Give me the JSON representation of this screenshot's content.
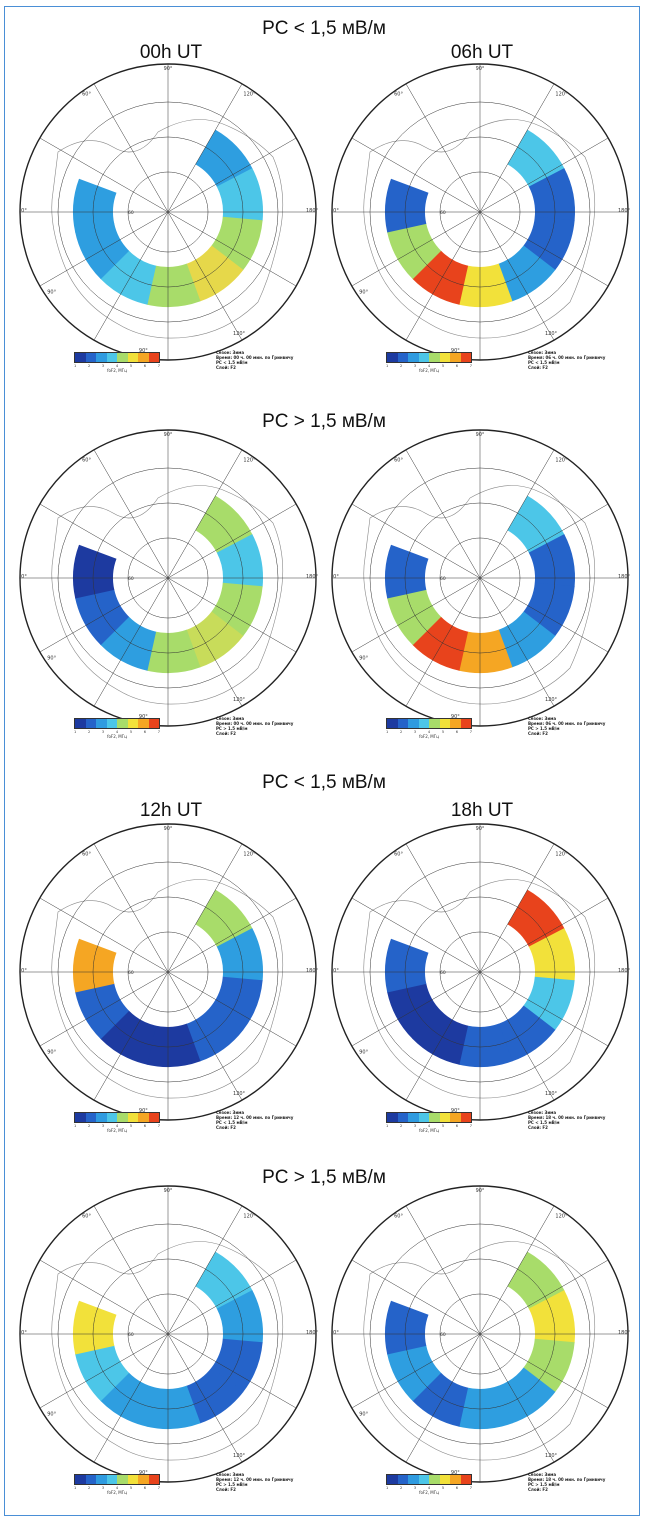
{
  "sections": [
    {
      "title": "PC < 1,5 мВ/м",
      "cols": [
        "00h UT",
        "06h UT"
      ]
    },
    {
      "title": "PC > 1,5 мВ/м",
      "cols": [
        "",
        ""
      ]
    },
    {
      "title": "PC < 1,5 мВ/м",
      "cols": [
        "12h UT",
        "18h UT"
      ]
    },
    {
      "title": "PC > 1,5 мВ/м",
      "cols": [
        "",
        ""
      ]
    }
  ],
  "axis_labels": {
    "top": "90°",
    "upper_left": "60°",
    "upper_right": "120°",
    "left": "0°",
    "right": "180°",
    "lower_left": "90°",
    "bottom": "90°",
    "lower_right": "120°",
    "inner": "60"
  },
  "colorbar": {
    "label": "foF2, МГц",
    "ticks": [
      "1",
      "2",
      "3",
      "4",
      "5",
      "6",
      "7"
    ],
    "colors": [
      "#1d3aa0",
      "#2563c9",
      "#2f9be0",
      "#4cc6e8",
      "#a8dc6a",
      "#f2e13a",
      "#f5a623",
      "#e8431c"
    ]
  },
  "maps": [
    {
      "caption": [
        "Сезон: Зима",
        "Время: 00 ч. 00 мин. по Гринвичу",
        "PC < 1.5 мВ/м",
        "Слой: F2"
      ],
      "bands": [
        "#2e9ee0",
        "#4cc6e8",
        "#a8dc6a",
        "#e6d84a",
        "#a8dc6a",
        "#4cc6e8",
        "#2e9ee0",
        "#2e9ee0"
      ]
    },
    {
      "caption": [
        "Сезон: Зима",
        "Время: 06 ч. 00 мин. по Гринвичу",
        "PC < 1.5 мВ/м",
        "Слой: F2"
      ],
      "bands": [
        "#4cc6e8",
        "#2563c9",
        "#2563c9",
        "#2e9ee0",
        "#f2e13a",
        "#e8431c",
        "#a8dc6a",
        "#2563c9"
      ]
    },
    {
      "caption": [
        "Сезон: Зима",
        "Время: 00 ч. 00 мин. по Гринвичу",
        "PC > 1.5 мВ/м",
        "Слой: F2"
      ],
      "bands": [
        "#a8dc6a",
        "#4cc6e8",
        "#a8dc6a",
        "#c8dc5a",
        "#a8dc6a",
        "#2e9ee0",
        "#2563c9",
        "#1d3aa0"
      ]
    },
    {
      "caption": [
        "Сезон: Зима",
        "Время: 06 ч. 00 мин. по Гринвичу",
        "PC > 1.5 мВ/м",
        "Слой: F2"
      ],
      "bands": [
        "#4cc6e8",
        "#2563c9",
        "#2563c9",
        "#2e9ee0",
        "#f5a623",
        "#e8431c",
        "#a8dc6a",
        "#2563c9"
      ]
    },
    {
      "caption": [
        "Сезон: Зима",
        "Время: 12 ч. 00 мин. по Гринвичу",
        "PC < 1.5 мВ/м",
        "Слой: F2"
      ],
      "bands": [
        "#a8dc6a",
        "#2e9ee0",
        "#2563c9",
        "#2563c9",
        "#1d3aa0",
        "#1d3aa0",
        "#2563c9",
        "#f5a623"
      ]
    },
    {
      "caption": [
        "Сезон: Зима",
        "Время: 18 ч. 00 мин. по Гринвичу",
        "PC < 1.5 мВ/м",
        "Слой: F2"
      ],
      "bands": [
        "#e8431c",
        "#f2e13a",
        "#4cc6e8",
        "#2563c9",
        "#2563c9",
        "#1d3aa0",
        "#1d3aa0",
        "#2563c9"
      ]
    },
    {
      "caption": [
        "Сезон: Зима",
        "Время: 12 ч. 00 мин. по Гринвичу",
        "PC > 1.5 мВ/м",
        "Слой: F2"
      ],
      "bands": [
        "#4cc6e8",
        "#2e9ee0",
        "#2563c9",
        "#2563c9",
        "#2e9ee0",
        "#2e9ee0",
        "#4cc6e8",
        "#f2e13a"
      ]
    },
    {
      "caption": [
        "Сезон: Зима",
        "Время: 18 ч. 00 мин. по Гринвичу",
        "PC > 1.5 мВ/м",
        "Слой: F2"
      ],
      "bands": [
        "#a8dc6a",
        "#f2e13a",
        "#a8dc6a",
        "#2e9ee0",
        "#2e9ee0",
        "#2563c9",
        "#2e9ee0",
        "#2563c9"
      ]
    }
  ]
}
